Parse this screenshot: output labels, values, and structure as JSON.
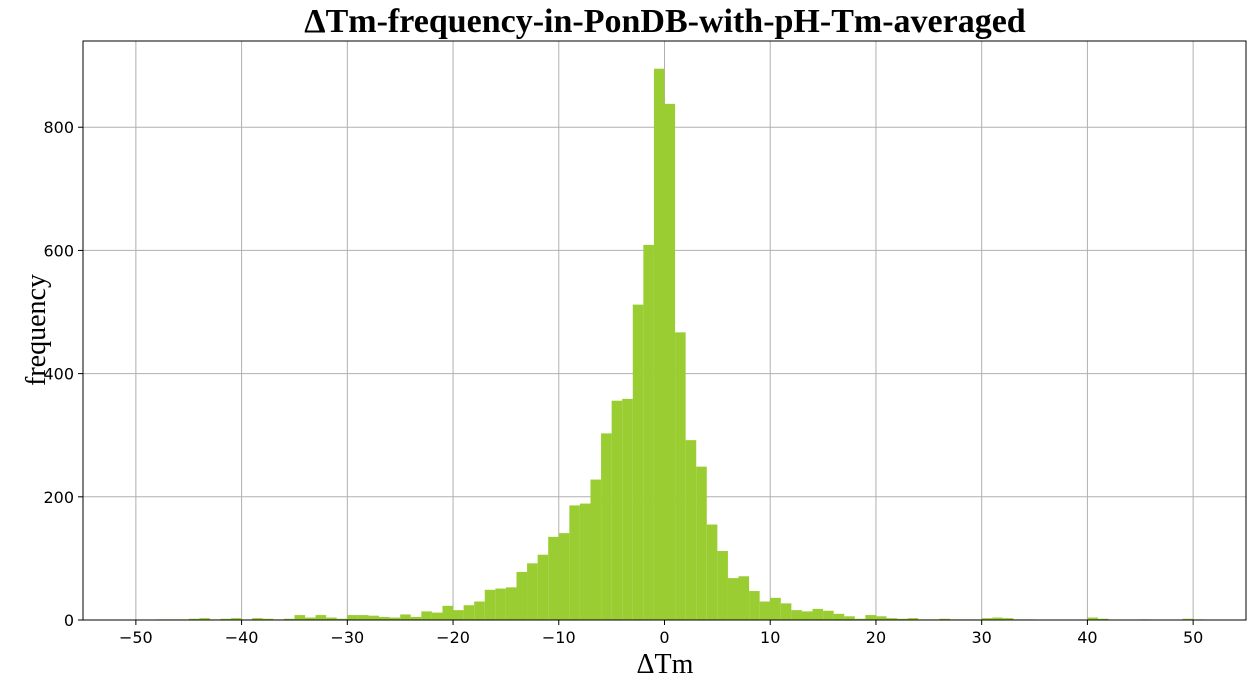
{
  "chart_data": {
    "type": "bar",
    "title": "ΔTm-frequency-in-PonDB-with-pH-Tm-averaged",
    "xlabel": "ΔTm",
    "ylabel": "frequency",
    "xlim": [
      -55,
      55
    ],
    "ylim": [
      0,
      940
    ],
    "bar_color": "#9acd32",
    "grid": true,
    "xticks": [
      -50,
      -40,
      -30,
      -20,
      -10,
      0,
      10,
      20,
      30,
      40,
      50
    ],
    "xtick_labels": [
      "−50",
      "−40",
      "−30",
      "−20",
      "−10",
      "0",
      "10",
      "20",
      "30",
      "40",
      "50"
    ],
    "yticks": [
      0,
      200,
      400,
      600,
      800
    ],
    "ytick_labels": [
      "0",
      "200",
      "400",
      "600",
      "800"
    ],
    "bin_width": 1,
    "bins": [
      {
        "x": -47.5,
        "y": 1
      },
      {
        "x": -46.5,
        "y": 1
      },
      {
        "x": -45.5,
        "y": 1
      },
      {
        "x": -44.5,
        "y": 2
      },
      {
        "x": -43.5,
        "y": 3
      },
      {
        "x": -42.5,
        "y": 1
      },
      {
        "x": -41.5,
        "y": 2
      },
      {
        "x": -40.5,
        "y": 3
      },
      {
        "x": -39.5,
        "y": 1
      },
      {
        "x": -38.5,
        "y": 3
      },
      {
        "x": -37.5,
        "y": 2
      },
      {
        "x": -36.5,
        "y": 1
      },
      {
        "x": -35.5,
        "y": 2
      },
      {
        "x": -34.5,
        "y": 8
      },
      {
        "x": -33.5,
        "y": 4
      },
      {
        "x": -32.5,
        "y": 8
      },
      {
        "x": -31.5,
        "y": 4
      },
      {
        "x": -30.5,
        "y": 2
      },
      {
        "x": -29.5,
        "y": 8
      },
      {
        "x": -28.5,
        "y": 8
      },
      {
        "x": -27.5,
        "y": 7
      },
      {
        "x": -26.5,
        "y": 5
      },
      {
        "x": -25.5,
        "y": 4
      },
      {
        "x": -24.5,
        "y": 9
      },
      {
        "x": -23.5,
        "y": 5
      },
      {
        "x": -22.5,
        "y": 14
      },
      {
        "x": -21.5,
        "y": 12
      },
      {
        "x": -20.5,
        "y": 23
      },
      {
        "x": -19.5,
        "y": 16
      },
      {
        "x": -18.5,
        "y": 24
      },
      {
        "x": -17.5,
        "y": 30
      },
      {
        "x": -16.5,
        "y": 49
      },
      {
        "x": -15.5,
        "y": 51
      },
      {
        "x": -14.5,
        "y": 53
      },
      {
        "x": -13.5,
        "y": 78
      },
      {
        "x": -12.5,
        "y": 92
      },
      {
        "x": -11.5,
        "y": 106
      },
      {
        "x": -10.5,
        "y": 135
      },
      {
        "x": -9.5,
        "y": 141
      },
      {
        "x": -8.5,
        "y": 186
      },
      {
        "x": -7.5,
        "y": 189
      },
      {
        "x": -6.5,
        "y": 228
      },
      {
        "x": -5.5,
        "y": 303
      },
      {
        "x": -4.5,
        "y": 356
      },
      {
        "x": -3.5,
        "y": 359
      },
      {
        "x": -2.5,
        "y": 512
      },
      {
        "x": -1.5,
        "y": 609
      },
      {
        "x": -0.5,
        "y": 895
      },
      {
        "x": 0.5,
        "y": 838
      },
      {
        "x": 1.5,
        "y": 467
      },
      {
        "x": 2.5,
        "y": 292
      },
      {
        "x": 3.5,
        "y": 249
      },
      {
        "x": 4.5,
        "y": 155
      },
      {
        "x": 5.5,
        "y": 112
      },
      {
        "x": 6.5,
        "y": 68
      },
      {
        "x": 7.5,
        "y": 71
      },
      {
        "x": 8.5,
        "y": 47
      },
      {
        "x": 9.5,
        "y": 30
      },
      {
        "x": 10.5,
        "y": 36
      },
      {
        "x": 11.5,
        "y": 27
      },
      {
        "x": 12.5,
        "y": 16
      },
      {
        "x": 13.5,
        "y": 14
      },
      {
        "x": 14.5,
        "y": 18
      },
      {
        "x": 15.5,
        "y": 15
      },
      {
        "x": 16.5,
        "y": 10
      },
      {
        "x": 17.5,
        "y": 6
      },
      {
        "x": 18.5,
        "y": 2
      },
      {
        "x": 19.5,
        "y": 8
      },
      {
        "x": 20.5,
        "y": 6
      },
      {
        "x": 21.5,
        "y": 3
      },
      {
        "x": 22.5,
        "y": 2
      },
      {
        "x": 23.5,
        "y": 3
      },
      {
        "x": 24.5,
        "y": 1
      },
      {
        "x": 25.5,
        "y": 1
      },
      {
        "x": 26.5,
        "y": 2
      },
      {
        "x": 27.5,
        "y": 1
      },
      {
        "x": 28.5,
        "y": 1
      },
      {
        "x": 29.5,
        "y": 1
      },
      {
        "x": 30.5,
        "y": 3
      },
      {
        "x": 31.5,
        "y": 4
      },
      {
        "x": 32.5,
        "y": 3
      },
      {
        "x": 33.5,
        "y": 1
      },
      {
        "x": 34.5,
        "y": 1
      },
      {
        "x": 40.5,
        "y": 4
      },
      {
        "x": 41.5,
        "y": 2
      },
      {
        "x": 45.5,
        "y": 1
      },
      {
        "x": 49.5,
        "y": 2
      },
      {
        "x": 50.5,
        "y": 1
      }
    ]
  }
}
